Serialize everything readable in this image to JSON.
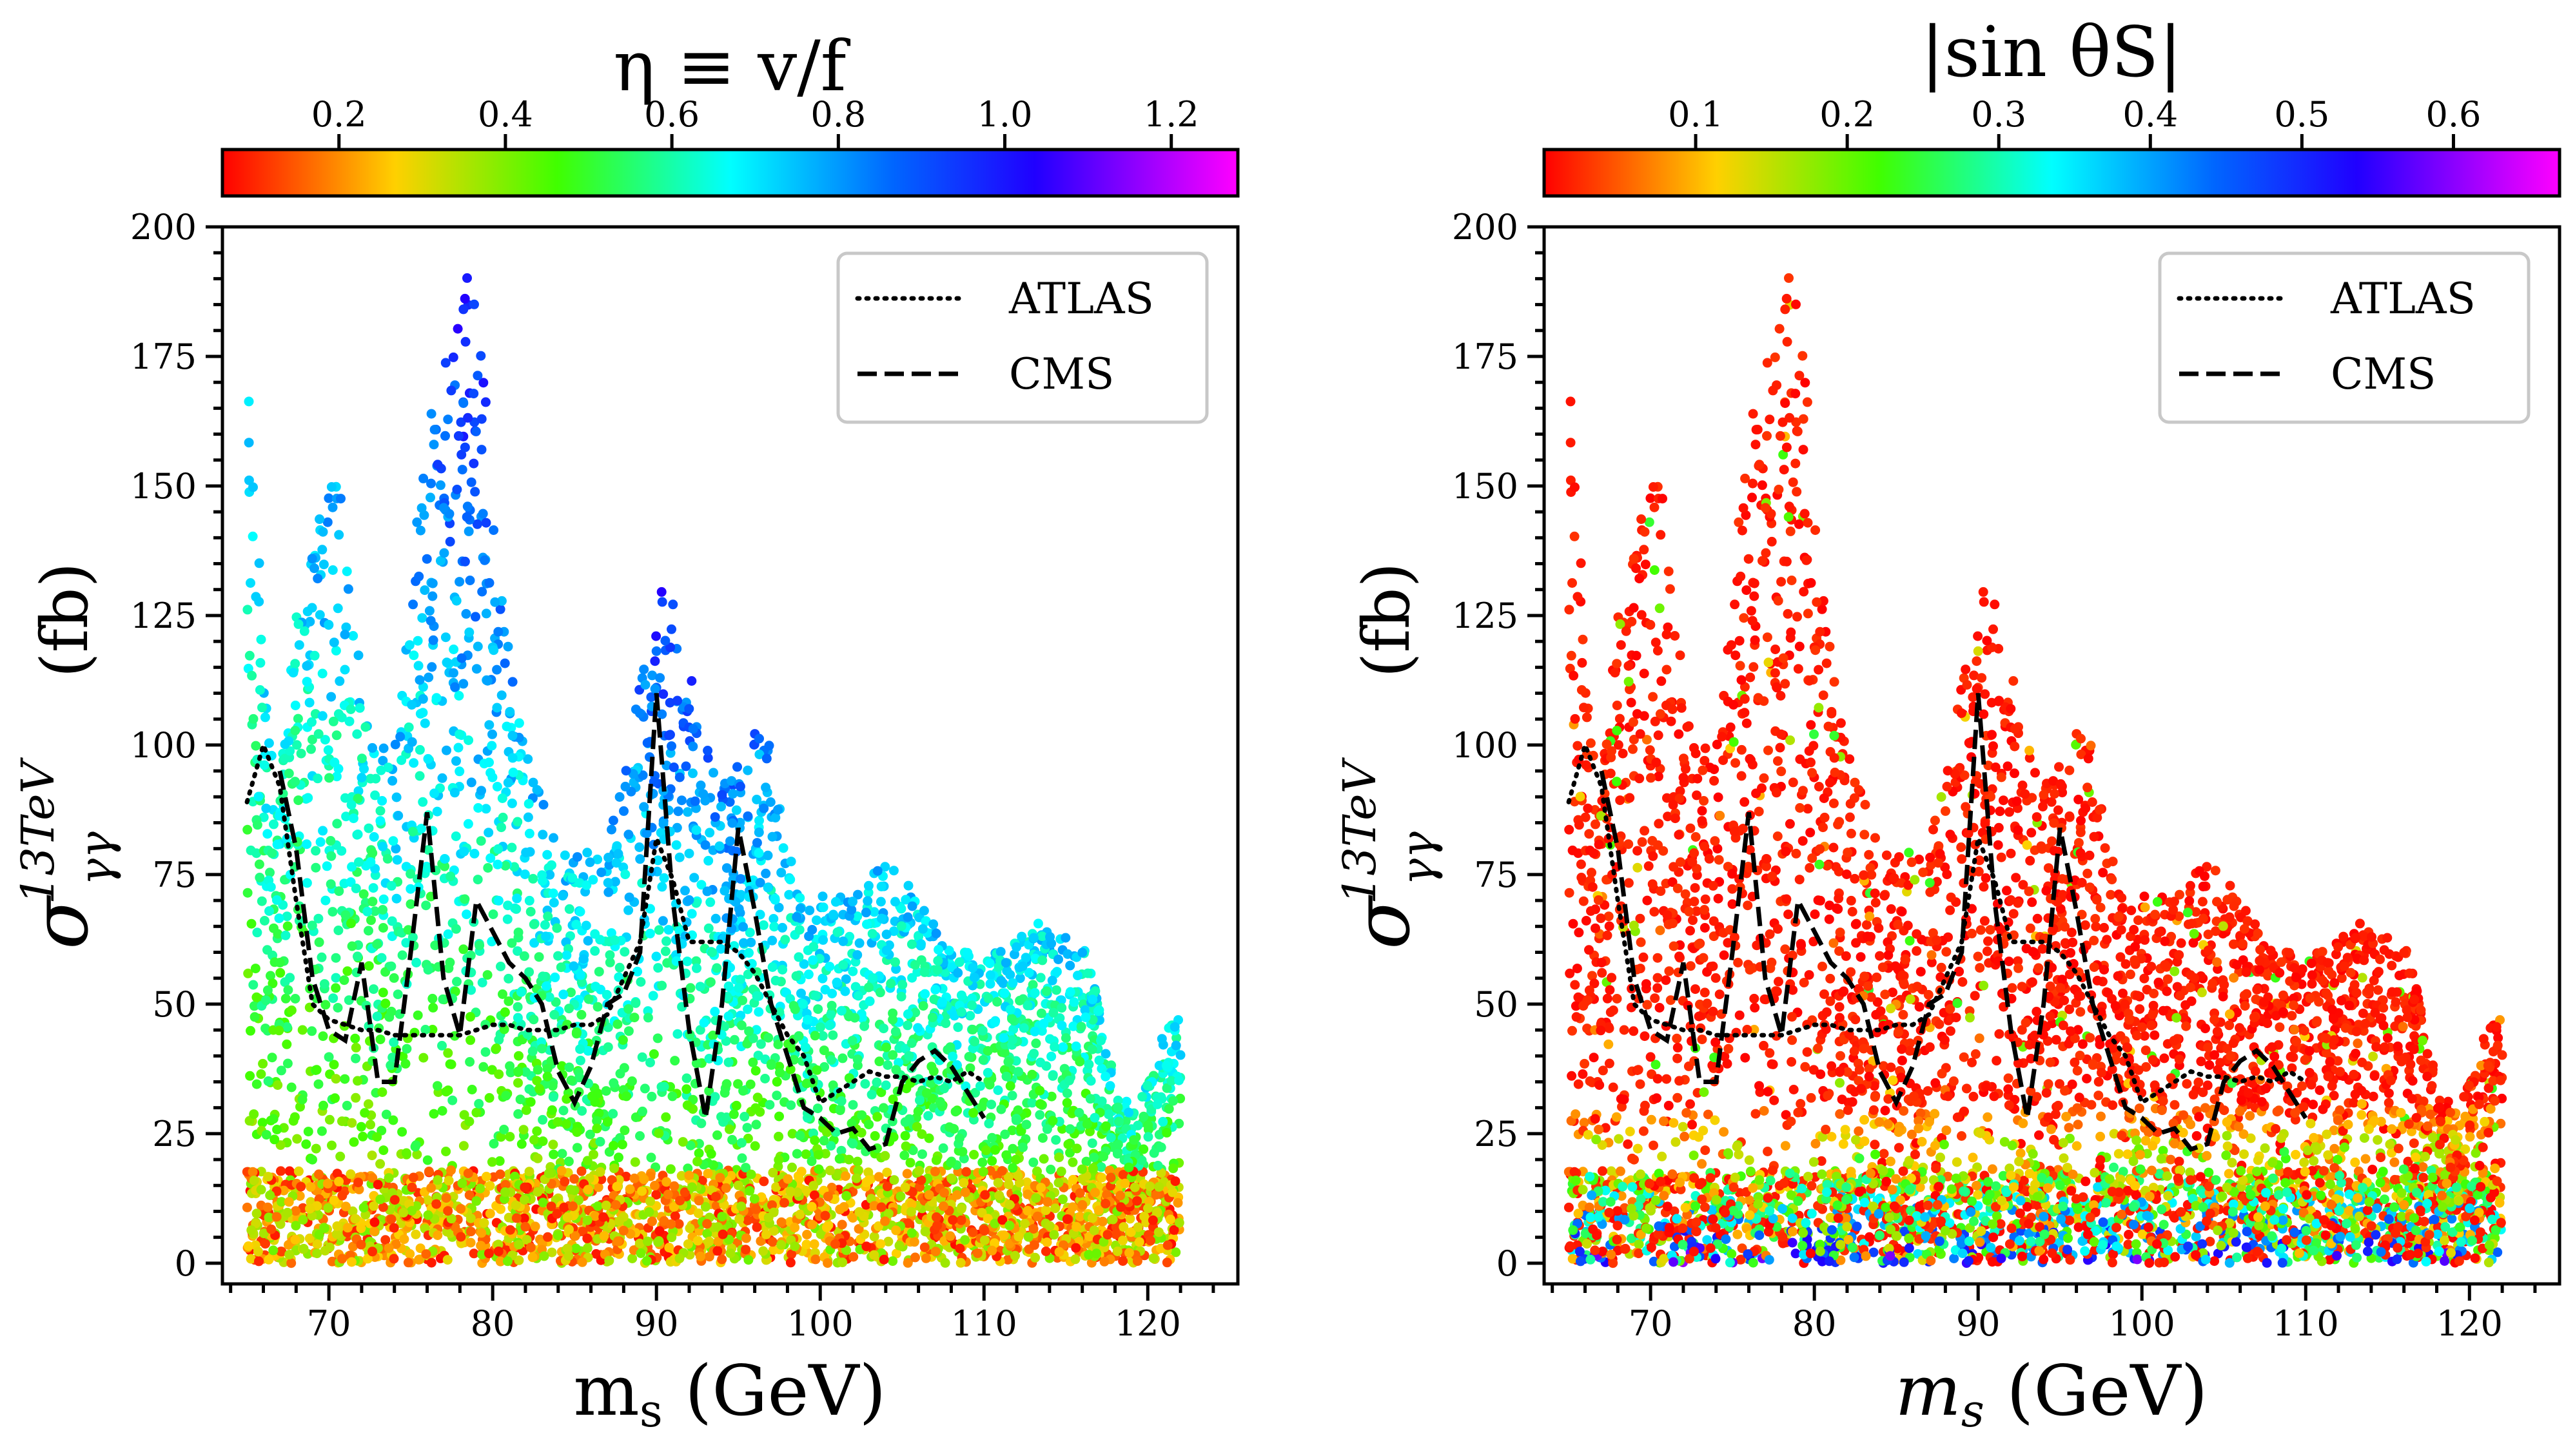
{
  "chart_data": [
    {
      "type": "scatter",
      "colorbar": {
        "title": "η ≡ v/f",
        "range": [
          0.06,
          1.28
        ],
        "ticks": [
          0.2,
          0.4,
          0.6,
          0.8,
          1.0,
          1.2
        ],
        "tick_labels": [
          "0.2",
          "0.4",
          "0.6",
          "0.8",
          "1.0",
          "1.2"
        ],
        "colormap": "gist_rainbow_r (red → yellow → green → cyan → blue → magenta)"
      },
      "xlabel_main": "m",
      "xlabel_sub": "s",
      "xlabel_unit": " (GeV)",
      "ylabel_symbol": "σ",
      "ylabel_sup": "13TeV",
      "ylabel_sub": "γγ",
      "ylabel_unit": "(fb)",
      "xlim": [
        63.5,
        125.5
      ],
      "ylim": [
        -4,
        200
      ],
      "x_ticks": [
        70,
        80,
        90,
        100,
        110,
        120
      ],
      "x_tick_labels": [
        "70",
        "80",
        "90",
        "100",
        "110",
        "120"
      ],
      "y_ticks": [
        0,
        25,
        50,
        75,
        100,
        125,
        150,
        175,
        200
      ],
      "y_tick_labels": [
        "0",
        "25",
        "50",
        "75",
        "100",
        "125",
        "150",
        "175",
        "200"
      ],
      "legend": {
        "position": "top-right",
        "entries": [
          {
            "label": "ATLAS",
            "style": "dotted"
          },
          {
            "label": "CMS",
            "style": "dashed"
          }
        ]
      },
      "scatter_envelope": {
        "x": [
          65,
          65.5,
          66,
          66.5,
          67,
          68,
          69,
          70,
          70.5,
          71,
          72,
          73,
          74,
          75,
          76,
          77,
          78,
          78.5,
          79,
          80,
          81,
          82,
          83,
          84,
          85,
          86,
          87,
          88,
          89,
          90,
          90.5,
          91,
          92,
          93,
          94,
          95,
          96,
          97,
          98,
          99,
          100,
          101,
          102,
          103,
          104,
          105,
          106,
          107,
          108,
          109,
          110,
          111,
          112,
          113,
          114,
          115,
          116,
          117,
          118,
          119,
          120,
          121,
          122
        ],
        "ymax": [
          175,
          160,
          112,
          100,
          95,
          125,
          140,
          150,
          154,
          140,
          112,
          100,
          100,
          135,
          160,
          180,
          190,
          193,
          185,
          155,
          120,
          100,
          90,
          85,
          80,
          80,
          80,
          95,
          112,
          125,
          135,
          137,
          115,
          100,
          92,
          97,
          103,
          100,
          80,
          70,
          72,
          72,
          72,
          75,
          77,
          75,
          70,
          65,
          60,
          60,
          58,
          62,
          65,
          67,
          65,
          64,
          62,
          52,
          35,
          30,
          35,
          45,
          48
        ],
        "dominant_color_value": [
          0.75,
          0.75,
          0.7,
          0.7,
          0.65,
          0.7,
          0.75,
          0.8,
          0.8,
          0.75,
          0.7,
          0.7,
          0.75,
          0.8,
          0.85,
          0.95,
          1.0,
          1.02,
          1.0,
          0.9,
          0.8,
          0.75,
          0.75,
          0.75,
          0.75,
          0.75,
          0.75,
          0.8,
          0.85,
          0.95,
          1.0,
          1.0,
          0.92,
          0.85,
          0.85,
          0.85,
          0.85,
          0.8,
          0.75,
          0.75,
          0.75,
          0.75,
          0.75,
          0.75,
          0.75,
          0.75,
          0.72,
          0.72,
          0.72,
          0.72,
          0.7,
          0.7,
          0.72,
          0.72,
          0.72,
          0.72,
          0.7,
          0.7,
          0.65,
          0.65,
          0.65,
          0.68,
          0.7
        ],
        "low_band_ymax": 18,
        "low_band_color_value": 0.15,
        "low_band_color_value_note": "points below ~18 fb are mostly low eta (red/orange/yellow)"
      },
      "atlas": {
        "x": [
          65,
          66,
          67,
          68,
          69,
          70,
          71,
          72,
          73,
          74,
          75,
          76,
          77,
          78,
          79,
          80,
          81,
          82,
          83,
          84,
          85,
          86,
          87,
          88,
          89,
          90,
          91,
          92,
          93,
          94,
          95,
          96,
          97,
          98,
          99,
          100,
          101,
          102,
          103,
          104,
          105,
          106,
          107,
          108,
          109,
          110
        ],
        "y": [
          89,
          100,
          92,
          70,
          50,
          47,
          46,
          45,
          45,
          44,
          44,
          44,
          44,
          44,
          45,
          46,
          46,
          45,
          45,
          45,
          46,
          46,
          48,
          55,
          62,
          82,
          74,
          62,
          62,
          62,
          60,
          56,
          50,
          44,
          40,
          31,
          33,
          35,
          37,
          36,
          36,
          35,
          36,
          35,
          37,
          35
        ]
      },
      "cms": {
        "x": [
          67,
          68,
          69,
          70,
          71,
          72,
          73,
          74,
          75,
          76,
          77,
          78,
          79,
          80,
          81,
          82,
          83,
          84,
          85,
          86,
          87,
          88,
          89,
          90,
          91,
          92,
          93,
          94,
          95,
          96,
          97,
          98,
          99,
          100,
          101,
          102,
          103,
          104,
          105,
          106,
          107,
          108,
          109,
          110
        ],
        "y": [
          95,
          80,
          55,
          45,
          43,
          58,
          35,
          35,
          60,
          87,
          55,
          44,
          70,
          64,
          58,
          55,
          50,
          37,
          31,
          38,
          50,
          52,
          60,
          110,
          70,
          45,
          28,
          50,
          84,
          68,
          50,
          40,
          30,
          28,
          25,
          26,
          22,
          23,
          35,
          39,
          41,
          38,
          33,
          28
        ]
      }
    },
    {
      "type": "scatter",
      "colorbar": {
        "title": "|sin θS|",
        "range": [
          0.0,
          0.67
        ],
        "ticks": [
          0.1,
          0.2,
          0.3,
          0.4,
          0.5,
          0.6
        ],
        "tick_labels": [
          "0.1",
          "0.2",
          "0.3",
          "0.4",
          "0.5",
          "0.6"
        ],
        "colormap": "gist_rainbow_r (red → yellow → green → cyan → blue → magenta)"
      },
      "xlabel_main": "m",
      "xlabel_sub": "s",
      "xlabel_unit": " (GeV)",
      "ylabel_symbol": "σ",
      "ylabel_sup": "13TeV",
      "ylabel_sub": "γγ",
      "ylabel_unit": "(fb)",
      "xlim": [
        63.5,
        125.5
      ],
      "ylim": [
        -4,
        200
      ],
      "x_ticks": [
        70,
        80,
        90,
        100,
        110,
        120
      ],
      "x_tick_labels": [
        "70",
        "80",
        "90",
        "100",
        "110",
        "120"
      ],
      "y_ticks": [
        0,
        25,
        50,
        75,
        100,
        125,
        150,
        175,
        200
      ],
      "y_tick_labels": [
        "0",
        "25",
        "50",
        "75",
        "100",
        "125",
        "150",
        "175",
        "200"
      ],
      "legend": {
        "position": "top-right",
        "entries": [
          {
            "label": "ATLAS",
            "style": "dotted"
          },
          {
            "label": "CMS",
            "style": "dashed"
          }
        ]
      },
      "scatter_envelope": {
        "note": "same point set as left panel; upper points mostly |sin θS| < 0.05 (red); larger values (yellow–magenta) concentrate at low cross section",
        "dominant_color_value": 0.02,
        "low_band_ymax": 30,
        "low_band_color_value_range": [
          0.05,
          0.6
        ]
      },
      "atlas": {
        "x": [
          65,
          66,
          67,
          68,
          69,
          70,
          71,
          72,
          73,
          74,
          75,
          76,
          77,
          78,
          79,
          80,
          81,
          82,
          83,
          84,
          85,
          86,
          87,
          88,
          89,
          90,
          91,
          92,
          93,
          94,
          95,
          96,
          97,
          98,
          99,
          100,
          101,
          102,
          103,
          104,
          105,
          106,
          107,
          108,
          109,
          110
        ],
        "y": [
          89,
          100,
          92,
          70,
          50,
          47,
          46,
          45,
          45,
          44,
          44,
          44,
          44,
          44,
          45,
          46,
          46,
          45,
          45,
          45,
          46,
          46,
          48,
          55,
          62,
          82,
          74,
          62,
          62,
          62,
          60,
          56,
          50,
          44,
          40,
          31,
          33,
          35,
          37,
          36,
          36,
          35,
          36,
          35,
          37,
          35
        ]
      },
      "cms": {
        "x": [
          67,
          68,
          69,
          70,
          71,
          72,
          73,
          74,
          75,
          76,
          77,
          78,
          79,
          80,
          81,
          82,
          83,
          84,
          85,
          86,
          87,
          88,
          89,
          90,
          91,
          92,
          93,
          94,
          95,
          96,
          97,
          98,
          99,
          100,
          101,
          102,
          103,
          104,
          105,
          106,
          107,
          108,
          109,
          110
        ],
        "y": [
          95,
          80,
          55,
          45,
          43,
          58,
          35,
          35,
          60,
          87,
          55,
          44,
          70,
          64,
          58,
          55,
          50,
          37,
          31,
          38,
          50,
          52,
          60,
          110,
          70,
          45,
          28,
          50,
          84,
          68,
          50,
          40,
          30,
          28,
          25,
          26,
          22,
          23,
          35,
          39,
          41,
          38,
          33,
          28
        ]
      }
    }
  ]
}
